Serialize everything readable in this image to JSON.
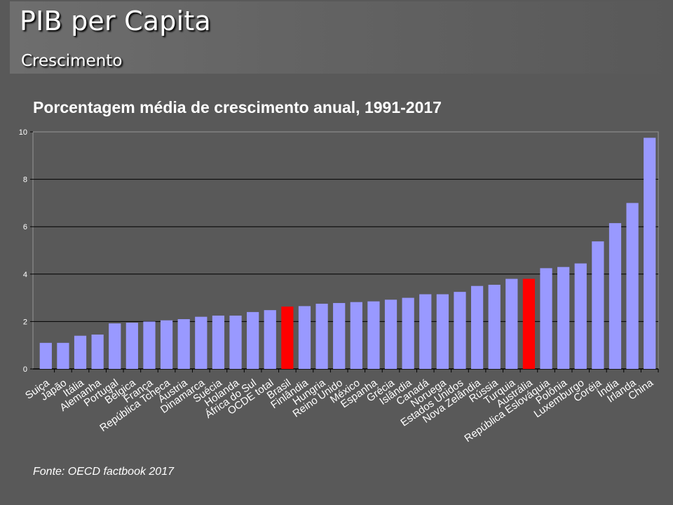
{
  "header": {
    "title": "PIB per Capita",
    "subtitle": "Crescimento"
  },
  "source": "Fonte: OECD factbook 2017",
  "colors": {
    "bar": "#9999ff",
    "highlight": "#ff0000",
    "background": "#595959",
    "text": "#ffffff"
  },
  "chart_data": {
    "type": "bar",
    "title": "Porcentagem média de crescimento anual, 1991-2017",
    "xlabel": "",
    "ylabel": "",
    "ylim": [
      0,
      10
    ],
    "yticks": [
      0,
      2,
      4,
      6,
      8,
      10
    ],
    "grid": true,
    "legend": "none",
    "categories": [
      "Suiça",
      "Japão",
      "Itália",
      "Alemanha",
      "Portugal",
      "Bélgica",
      "França",
      "República Tcheca",
      "Áustria",
      "Dinamarca",
      "Suécia",
      "Holanda",
      "África do Sul",
      "OCDE total",
      "Brasil",
      "Finlândia",
      "Hungria",
      "Reino Unido",
      "México",
      "Espanha",
      "Grécia",
      "Islândia",
      "Canadá",
      "Noruega",
      "Estados Unidos",
      "Nova Zelândia",
      "Rússia",
      "Turquia",
      "Austrália",
      "República Eslováquia",
      "Polônia",
      "Luxemburgo",
      "Coréia",
      "Índia",
      "Irlanda",
      "China"
    ],
    "values": [
      1.1,
      1.1,
      1.4,
      1.45,
      1.92,
      1.95,
      2.0,
      2.05,
      2.1,
      2.2,
      2.25,
      2.25,
      2.4,
      2.48,
      2.63,
      2.65,
      2.75,
      2.78,
      2.82,
      2.85,
      2.92,
      3.0,
      3.15,
      3.15,
      3.25,
      3.5,
      3.55,
      3.8,
      3.8,
      4.25,
      4.3,
      4.45,
      5.38,
      6.15,
      7.0,
      9.75
    ],
    "highlight_indices": [
      14,
      28
    ]
  }
}
